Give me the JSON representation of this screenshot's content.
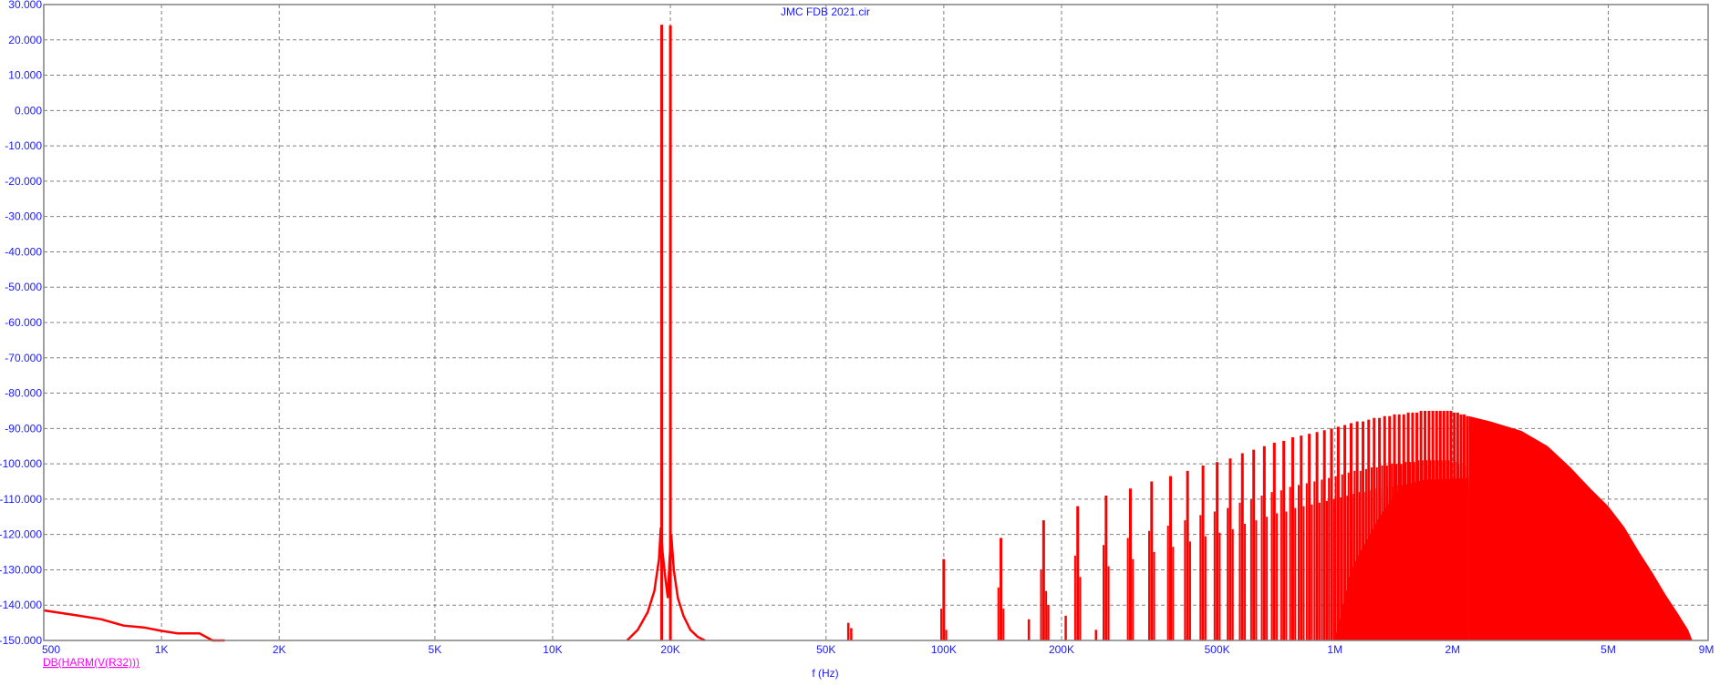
{
  "chart_data": {
    "type": "line",
    "title": "JMC FDB 2021.cir",
    "xlabel": "f (Hz)",
    "ylabel": "",
    "x_scale": "log",
    "xlim": [
      500,
      9000000
    ],
    "ylim": [
      -150,
      30
    ],
    "grid": true,
    "x_ticks": [
      {
        "value": 500,
        "label": "500"
      },
      {
        "value": 1000,
        "label": "1K"
      },
      {
        "value": 2000,
        "label": "2K"
      },
      {
        "value": 5000,
        "label": "5K"
      },
      {
        "value": 10000,
        "label": "10K"
      },
      {
        "value": 20000,
        "label": "20K"
      },
      {
        "value": 50000,
        "label": "50K"
      },
      {
        "value": 100000,
        "label": "100K"
      },
      {
        "value": 200000,
        "label": "200K"
      },
      {
        "value": 500000,
        "label": "500K"
      },
      {
        "value": 1000000,
        "label": "1M"
      },
      {
        "value": 2000000,
        "label": "2M"
      },
      {
        "value": 5000000,
        "label": "5M"
      },
      {
        "value": 9000000,
        "label": "9M"
      }
    ],
    "y_ticks": [
      {
        "value": 30,
        "label": "30.000"
      },
      {
        "value": 20,
        "label": "20.000"
      },
      {
        "value": 10,
        "label": "10.000"
      },
      {
        "value": 0,
        "label": "0.000"
      },
      {
        "value": -10,
        "label": "-10.000"
      },
      {
        "value": -20,
        "label": "-20.000"
      },
      {
        "value": -30,
        "label": "-30.000"
      },
      {
        "value": -40,
        "label": "-40.000"
      },
      {
        "value": -50,
        "label": "-50.000"
      },
      {
        "value": -60,
        "label": "-60.000"
      },
      {
        "value": -70,
        "label": "-70.000"
      },
      {
        "value": -80,
        "label": "-80.000"
      },
      {
        "value": -90,
        "label": "-90.000"
      },
      {
        "value": -100,
        "label": "-100.000"
      },
      {
        "value": -110,
        "label": "-110.000"
      },
      {
        "value": -120,
        "label": "-120.000"
      },
      {
        "value": -130,
        "label": "-130.000"
      },
      {
        "value": -140,
        "label": "-140.000"
      },
      {
        "value": -150,
        "label": "-150.000"
      }
    ],
    "series": [
      {
        "name": "DB(HARM(V(R32)))",
        "color": "#ff0000",
        "low_freq_curve": [
          [
            500,
            -141.5
          ],
          [
            600,
            -142.8
          ],
          [
            700,
            -144
          ],
          [
            800,
            -145.8
          ],
          [
            900,
            -146.3
          ],
          [
            1000,
            -147.3
          ],
          [
            1100,
            -148
          ],
          [
            1250,
            -148
          ],
          [
            1350,
            -150
          ],
          [
            1450,
            -150
          ]
        ],
        "fundamental_skirt": [
          [
            15500,
            -150
          ],
          [
            16500,
            -147
          ],
          [
            17500,
            -142
          ],
          [
            18200,
            -136
          ],
          [
            18700,
            -127
          ],
          [
            18900,
            -118
          ],
          [
            19100,
            -125
          ],
          [
            19400,
            -132
          ],
          [
            19700,
            -138
          ],
          [
            19900,
            -127
          ],
          [
            20100,
            -120
          ],
          [
            20400,
            -130
          ],
          [
            20900,
            -138
          ],
          [
            21600,
            -143
          ],
          [
            22500,
            -147
          ],
          [
            23500,
            -149
          ],
          [
            24500,
            -150
          ]
        ],
        "fundamental_peaks": [
          [
            19000,
            24.3
          ],
          [
            20000,
            24.1
          ]
        ],
        "spur_lines": [
          [
            57000,
            -145
          ],
          [
            58000,
            -146.5
          ],
          [
            120000,
            -150
          ],
          [
            165000,
            -144
          ],
          [
            185000,
            -140
          ],
          [
            205000,
            -143
          ],
          [
            245000,
            -147
          ]
        ],
        "harmonic_peaks": [
          [
            100000,
            -127
          ],
          [
            140000,
            -121
          ],
          [
            180000,
            -116
          ],
          [
            220000,
            -112
          ],
          [
            260000,
            -109
          ],
          [
            300000,
            -107
          ],
          [
            340000,
            -105
          ],
          [
            380000,
            -103.5
          ],
          [
            420000,
            -102
          ],
          [
            460000,
            -100.5
          ],
          [
            500000,
            -99.5
          ],
          [
            540000,
            -98.5
          ],
          [
            580000,
            -97
          ],
          [
            620000,
            -96
          ],
          [
            660000,
            -95
          ],
          [
            700000,
            -94
          ],
          [
            740000,
            -93.5
          ],
          [
            780000,
            -92.5
          ],
          [
            820000,
            -92
          ],
          [
            860000,
            -91.5
          ],
          [
            900000,
            -91
          ],
          [
            940000,
            -90.5
          ],
          [
            980000,
            -90
          ],
          [
            1020000,
            -89.5
          ],
          [
            1060000,
            -89
          ],
          [
            1100000,
            -88.5
          ],
          [
            1140000,
            -88
          ],
          [
            1180000,
            -88
          ],
          [
            1220000,
            -87.5
          ],
          [
            1260000,
            -87
          ],
          [
            1300000,
            -87
          ],
          [
            1340000,
            -86.5
          ],
          [
            1380000,
            -86.5
          ],
          [
            1420000,
            -86
          ],
          [
            1460000,
            -86
          ],
          [
            1500000,
            -86
          ],
          [
            1540000,
            -85.5
          ],
          [
            1580000,
            -85.5
          ],
          [
            1620000,
            -85.5
          ],
          [
            1660000,
            -85
          ],
          [
            1700000,
            -85
          ],
          [
            1740000,
            -85
          ],
          [
            1780000,
            -85
          ],
          [
            1820000,
            -85
          ],
          [
            1860000,
            -85
          ],
          [
            1900000,
            -85
          ],
          [
            1940000,
            -85
          ],
          [
            1980000,
            -85
          ],
          [
            2020000,
            -85.5
          ],
          [
            2060000,
            -85.5
          ],
          [
            2100000,
            -86
          ],
          [
            2140000,
            -86
          ],
          [
            2180000,
            -86.5
          ]
        ],
        "dense_floor": [
          [
            1000000,
            -150
          ],
          [
            1100000,
            -130
          ],
          [
            1200000,
            -122
          ],
          [
            1300000,
            -115
          ],
          [
            1400000,
            -110
          ],
          [
            1500000,
            -106
          ],
          [
            1700000,
            -104.5
          ],
          [
            2200000,
            -104
          ]
        ],
        "dense_envelope": [
          [
            2200000,
            -86.5
          ],
          [
            2500000,
            -88
          ],
          [
            3000000,
            -90.7
          ],
          [
            3500000,
            -95
          ],
          [
            4000000,
            -101
          ],
          [
            4500000,
            -107
          ],
          [
            5000000,
            -112
          ],
          [
            5500000,
            -118
          ],
          [
            6000000,
            -125
          ],
          [
            6500000,
            -131
          ],
          [
            7000000,
            -137
          ],
          [
            7500000,
            -142
          ],
          [
            8000000,
            -147
          ],
          [
            8200000,
            -150
          ]
        ]
      }
    ]
  },
  "legend": {
    "trace_label": "DB(HARM(V(R32)))"
  }
}
